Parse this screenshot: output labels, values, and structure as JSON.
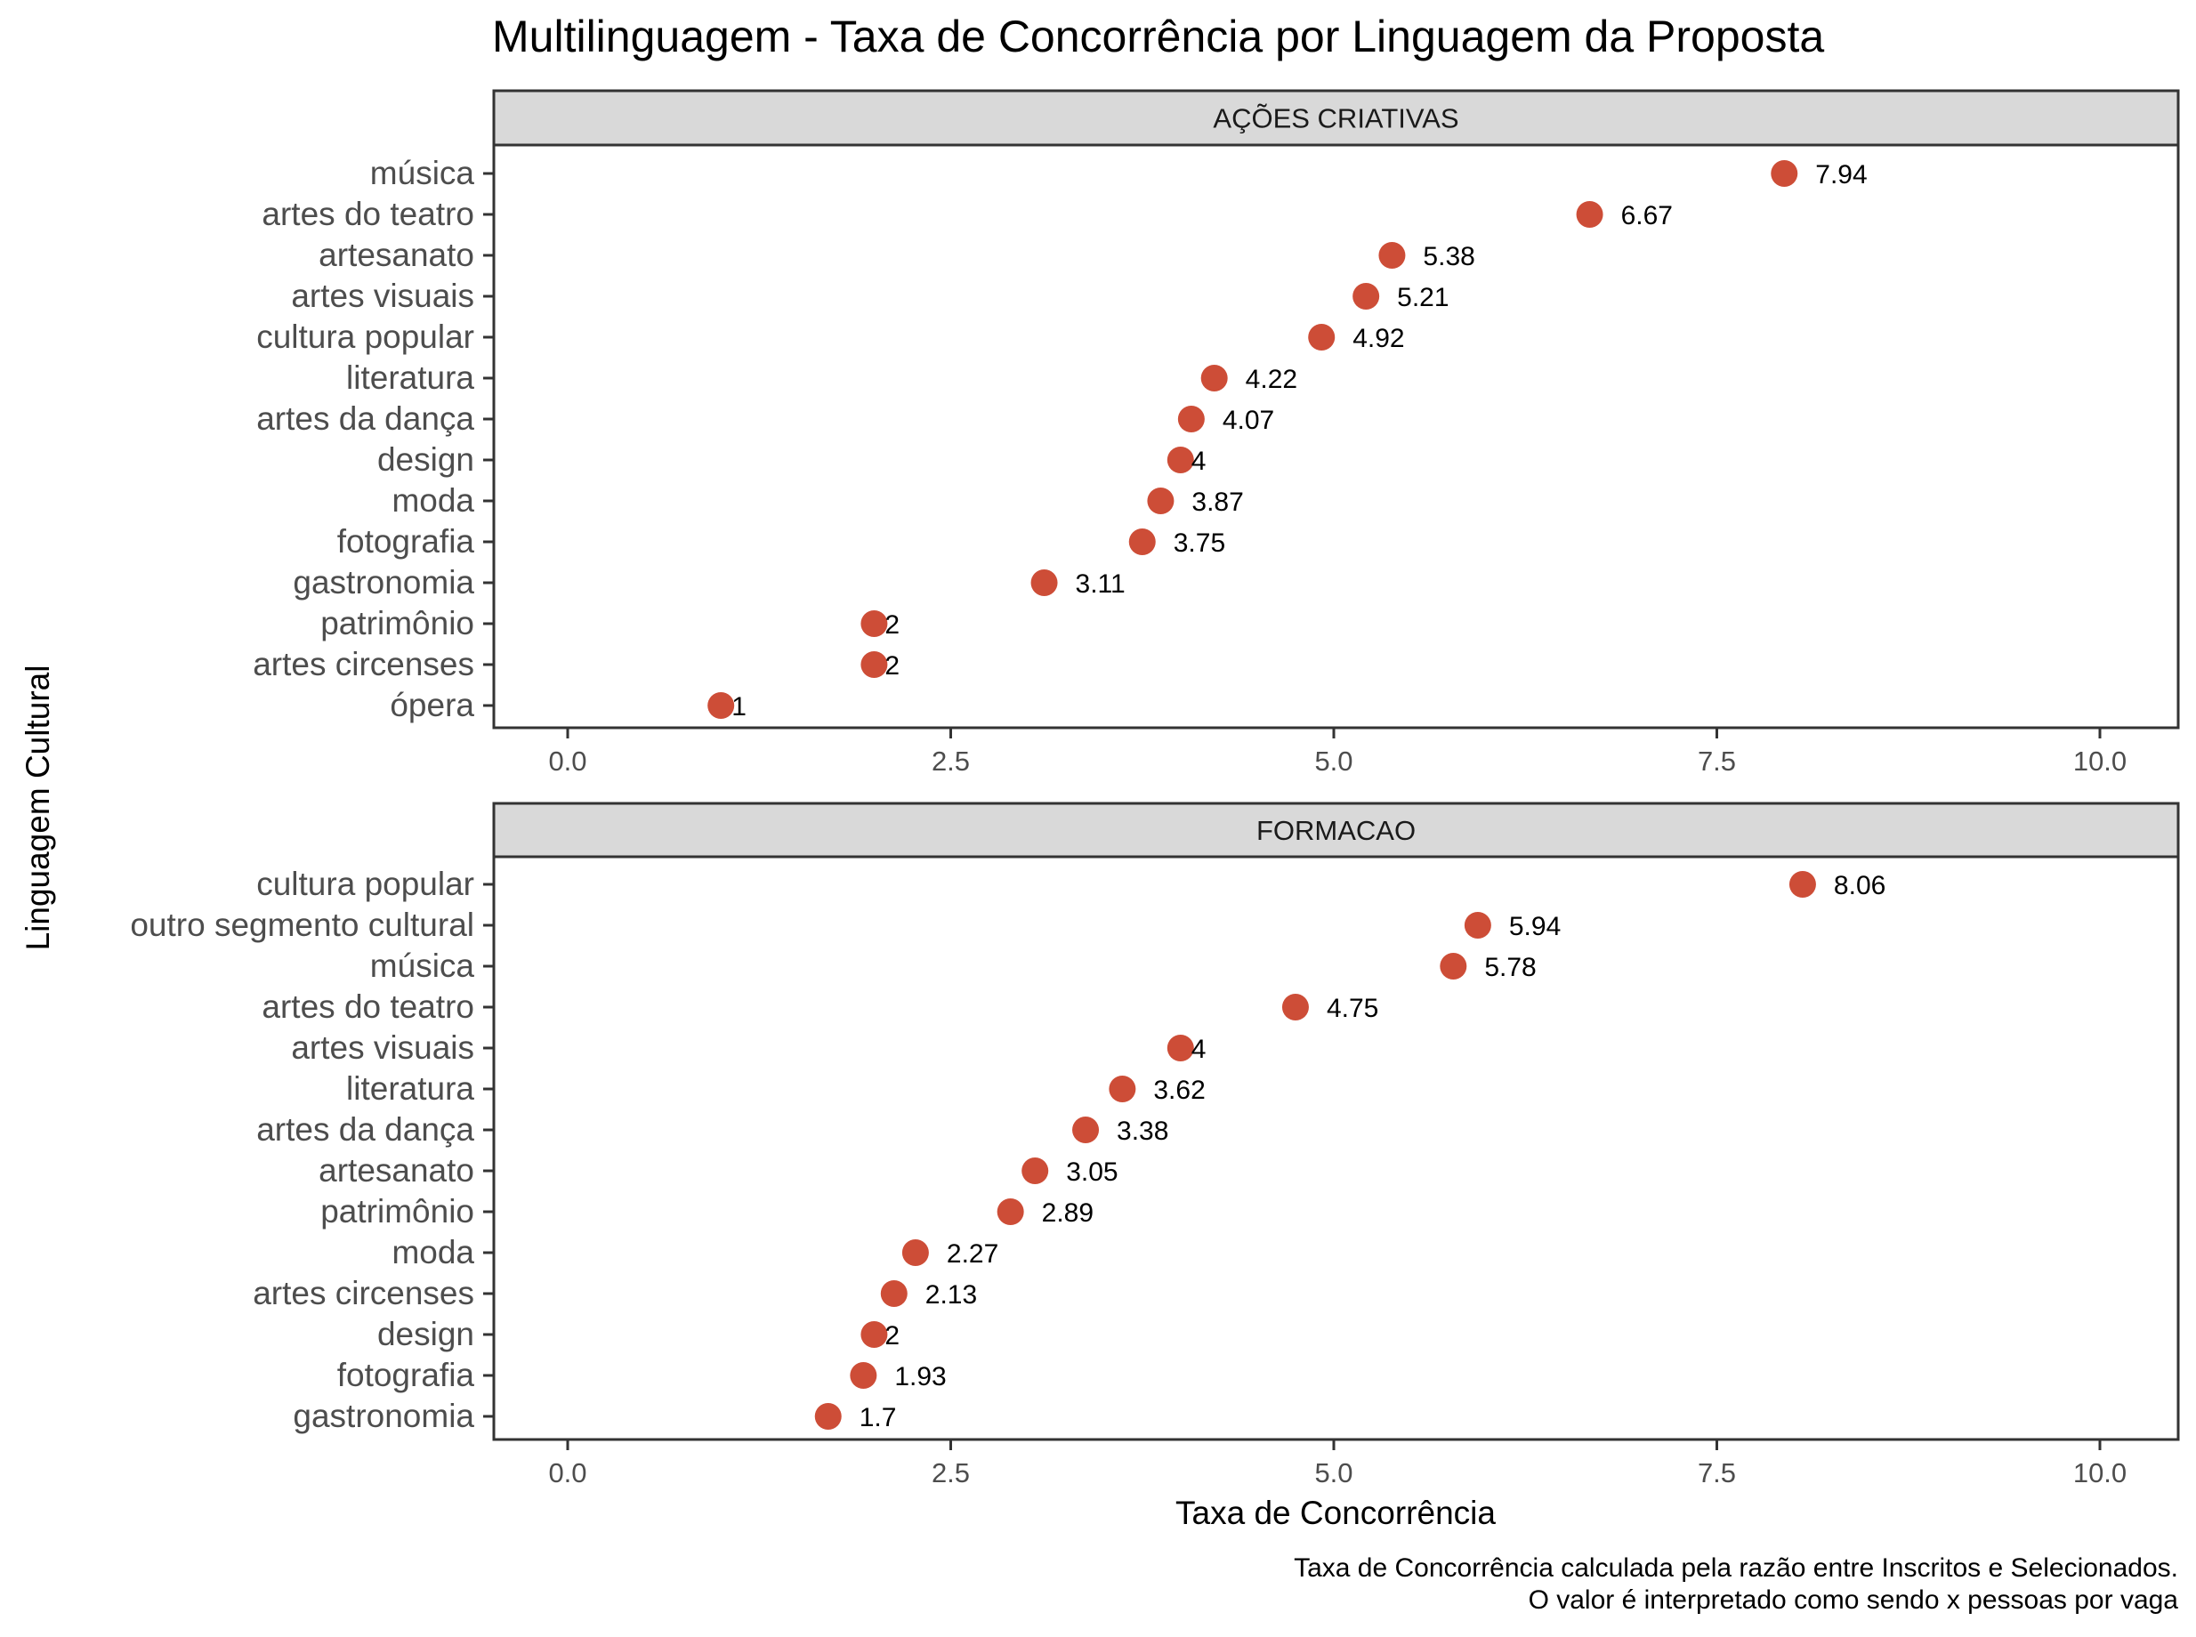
{
  "title": "Multilinguagem - Taxa de Concorrência por Linguagem da Proposta",
  "xlabel": "Taxa de Concorrência",
  "ylabel": "Linguagem Cultural",
  "caption": [
    "Taxa de Concorrência calculada pela razão entre Inscritos e Selecionados.",
    "O valor é interpretado como sendo x pessoas por vaga"
  ],
  "colors": {
    "point": "#CD4D37",
    "strip": "#D9D9D9",
    "panel_border": "#333333",
    "axis_text": "#4D4D4D"
  },
  "chart_data": [
    {
      "type": "scatter",
      "panel": "AÇÕES CRIATIVAS",
      "xlim": [
        0,
        10
      ],
      "xticks": [
        0,
        2.5,
        5,
        7.5,
        10
      ],
      "xtick_labels": [
        "0.0",
        "2.5",
        "5.0",
        "7.5",
        "10.0"
      ],
      "grid": false,
      "categories": [
        "música",
        "artes do teatro",
        "artesanato",
        "artes visuais",
        "cultura popular",
        "literatura",
        "artes da dança",
        "design",
        "moda",
        "fotografia",
        "gastronomia",
        "patrimônio",
        "artes circenses",
        "ópera"
      ],
      "values": [
        7.94,
        6.67,
        5.38,
        5.21,
        4.92,
        4.22,
        4.07,
        4,
        3.87,
        3.75,
        3.11,
        2,
        2,
        1
      ],
      "labels": [
        "7.94",
        "6.67",
        "5.38",
        "5.21",
        "4.92",
        "4.22",
        "4.07",
        "4",
        "3.87",
        "3.75",
        "3.11",
        "2",
        "2",
        "1"
      ]
    },
    {
      "type": "scatter",
      "panel": "FORMACAO",
      "xlim": [
        0,
        10
      ],
      "xticks": [
        0,
        2.5,
        5,
        7.5,
        10
      ],
      "xtick_labels": [
        "0.0",
        "2.5",
        "5.0",
        "7.5",
        "10.0"
      ],
      "grid": false,
      "categories": [
        "cultura popular",
        "outro segmento cultural",
        "música",
        "artes do teatro",
        "artes visuais",
        "literatura",
        "artes da dança",
        "artesanato",
        "patrimônio",
        "moda",
        "artes circenses",
        "design",
        "fotografia",
        "gastronomia"
      ],
      "values": [
        8.06,
        5.94,
        5.78,
        4.75,
        4,
        3.62,
        3.38,
        3.05,
        2.89,
        2.27,
        2.13,
        2,
        1.93,
        1.7
      ],
      "labels": [
        "8.06",
        "5.94",
        "5.78",
        "4.75",
        "4",
        "3.62",
        "3.38",
        "3.05",
        "2.89",
        "2.27",
        "2.13",
        "2",
        "1.93",
        "1.7"
      ]
    }
  ]
}
